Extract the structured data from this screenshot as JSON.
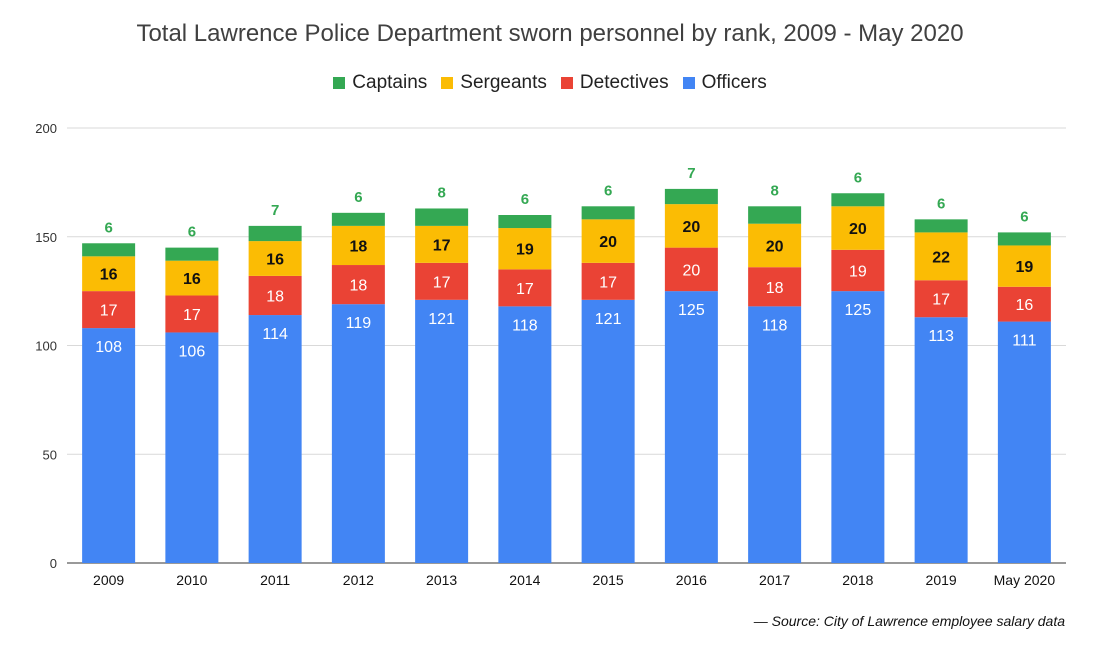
{
  "colors": {
    "Captains": "#34a853",
    "Sergeants": "#fbbc04",
    "Detectives": "#ea4335",
    "Officers": "#4285f4"
  },
  "source_note": "— Source: City of Lawrence employee salary data",
  "chart_data": {
    "type": "bar",
    "stacked": true,
    "title": "Total Lawrence Police Department sworn personnel by rank, 2009 - May 2020",
    "xlabel": "",
    "ylabel": "",
    "ylim": [
      0,
      200
    ],
    "yticks": [
      0,
      50,
      100,
      150,
      200
    ],
    "grid": true,
    "legend_position": "top",
    "legend": [
      "Captains",
      "Sergeants",
      "Detectives",
      "Officers"
    ],
    "categories": [
      "2009",
      "2010",
      "2011",
      "2012",
      "2013",
      "2014",
      "2015",
      "2016",
      "2017",
      "2018",
      "2019",
      "May 2020"
    ],
    "series": [
      {
        "name": "Officers",
        "values": [
          108,
          106,
          114,
          119,
          121,
          118,
          121,
          125,
          118,
          125,
          113,
          111
        ]
      },
      {
        "name": "Detectives",
        "values": [
          17,
          17,
          18,
          18,
          17,
          17,
          17,
          20,
          18,
          19,
          17,
          16
        ]
      },
      {
        "name": "Sergeants",
        "values": [
          16,
          16,
          16,
          18,
          17,
          19,
          20,
          20,
          20,
          20,
          22,
          19
        ]
      },
      {
        "name": "Captains",
        "values": [
          6,
          6,
          7,
          6,
          8,
          6,
          6,
          7,
          8,
          6,
          6,
          6
        ]
      }
    ]
  }
}
